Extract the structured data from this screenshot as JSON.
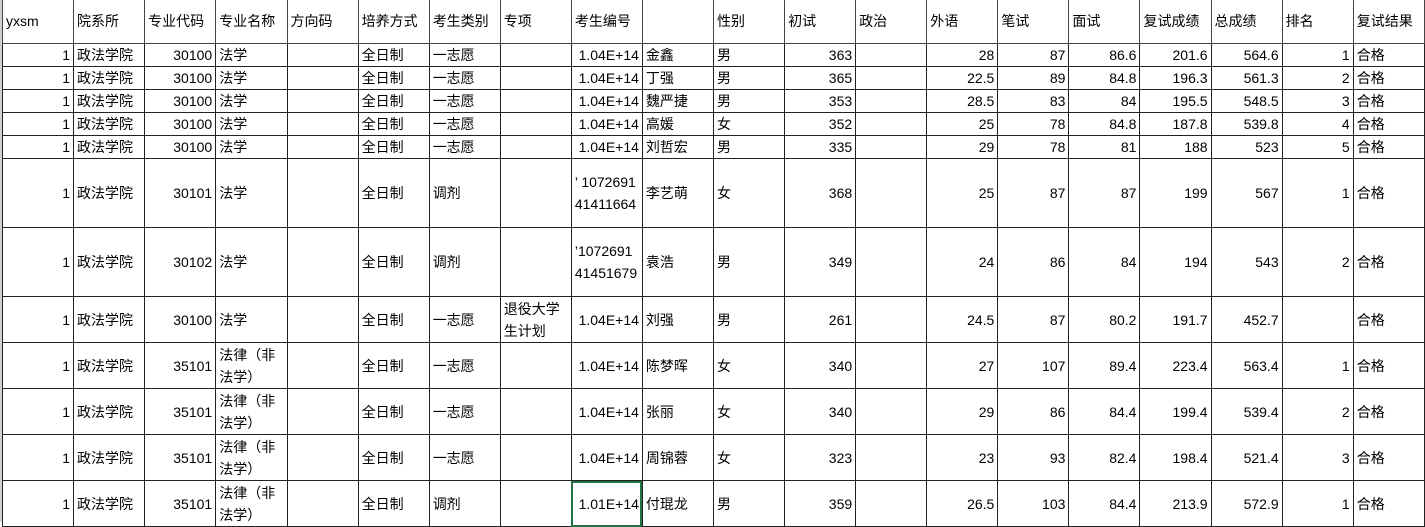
{
  "headers": [
    "yxsm",
    "院系所",
    "专业代码",
    "专业名称",
    "方向码",
    "培养方式",
    "考生类别",
    "专项",
    "考生编号",
    "",
    "性别",
    "初试",
    "政治",
    "外语",
    "笔试",
    "面试",
    "复试成绩",
    "总成绩",
    "排名",
    "复试结果"
  ],
  "numeric_columns": [
    0,
    2,
    8,
    11,
    12,
    13,
    14,
    15,
    16,
    17,
    18
  ],
  "selected_cell": {
    "row": 12,
    "col": 8
  },
  "selection_color": "#217346",
  "rows": [
    [
      "1",
      "政法学院",
      "30100",
      "法学",
      "",
      "全日制",
      "一志愿",
      "",
      "1.04E+14",
      "金鑫",
      "男",
      "363",
      "",
      "28",
      "87",
      "86.6",
      "201.6",
      "564.6",
      "1",
      "合格"
    ],
    [
      "1",
      "政法学院",
      "30100",
      "法学",
      "",
      "全日制",
      "一志愿",
      "",
      "1.04E+14",
      "丁强",
      "男",
      "365",
      "",
      "22.5",
      "89",
      "84.8",
      "196.3",
      "561.3",
      "2",
      "合格"
    ],
    [
      "1",
      "政法学院",
      "30100",
      "法学",
      "",
      "全日制",
      "一志愿",
      "",
      "1.04E+14",
      "魏严捷",
      "男",
      "353",
      "",
      "28.5",
      "83",
      "84",
      "195.5",
      "548.5",
      "3",
      "合格"
    ],
    [
      "1",
      "政法学院",
      "30100",
      "法学",
      "",
      "全日制",
      "一志愿",
      "",
      "1.04E+14",
      "高媛",
      "女",
      "352",
      "",
      "25",
      "78",
      "84.8",
      "187.8",
      "539.8",
      "4",
      "合格"
    ],
    [
      "1",
      "政法学院",
      "30100",
      "法学",
      "",
      "全日制",
      "一志愿",
      "",
      "1.04E+14",
      "刘哲宏",
      "男",
      "335",
      "",
      "29",
      "78",
      "81",
      "188",
      "523",
      "5",
      "合格"
    ],
    [
      "1",
      "政法学院",
      "30101",
      "法学",
      "",
      "全日制",
      "调剂",
      "",
      "’ 107269141411664",
      "李艺萌",
      "女",
      "368",
      "",
      "25",
      "87",
      "87",
      "199",
      "567",
      "1",
      "合格"
    ],
    [
      "1",
      "政法学院",
      "30102",
      "法学",
      "",
      "全日制",
      "调剂",
      "",
      "’107269141451679",
      "袁浩",
      "男",
      "349",
      "",
      "24",
      "86",
      "84",
      "194",
      "543",
      "2",
      "合格"
    ],
    [
      "1",
      "政法学院",
      "30100",
      "法学",
      "",
      "全日制",
      "一志愿",
      "退役大学生计划",
      "1.04E+14",
      "刘强",
      "男",
      "261",
      "",
      "24.5",
      "87",
      "80.2",
      "191.7",
      "452.7",
      "",
      "合格"
    ],
    [
      "1",
      "政法学院",
      "35101",
      "法律（非法学）",
      "",
      "全日制",
      "一志愿",
      "",
      "1.04E+14",
      "陈梦晖",
      "女",
      "340",
      "",
      "27",
      "107",
      "89.4",
      "223.4",
      "563.4",
      "1",
      "合格"
    ],
    [
      "1",
      "政法学院",
      "35101",
      "法律（非法学）",
      "",
      "全日制",
      "一志愿",
      "",
      "1.04E+14",
      "张丽",
      "女",
      "340",
      "",
      "29",
      "86",
      "84.4",
      "199.4",
      "539.4",
      "2",
      "合格"
    ],
    [
      "1",
      "政法学院",
      "35101",
      "法律（非法学）",
      "",
      "全日制",
      "一志愿",
      "",
      "1.04E+14",
      "周锦蓉",
      "女",
      "323",
      "",
      "23",
      "93",
      "82.4",
      "198.4",
      "521.4",
      "3",
      "合格"
    ],
    [
      "1",
      "政法学院",
      "35101",
      "法律（非法学）",
      "",
      "全日制",
      "调剂",
      "",
      "1.01E+14",
      "付琨龙",
      "男",
      "359",
      "",
      "26.5",
      "103",
      "84.4",
      "213.9",
      "572.9",
      "1",
      "合格"
    ]
  ]
}
